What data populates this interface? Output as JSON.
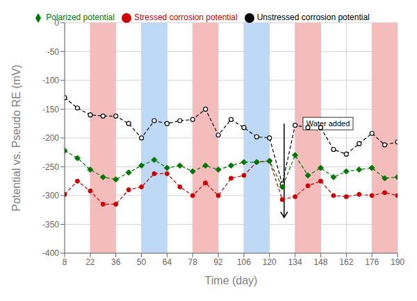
{
  "chart_data": {
    "type": "line",
    "xlabel": "Time (day)",
    "ylabel": "Potential vs. Pseudo RE (mV)",
    "x": [
      8,
      15,
      22,
      29,
      36,
      43,
      50,
      57,
      64,
      71,
      78,
      85,
      92,
      99,
      106,
      113,
      120,
      127,
      134,
      141,
      148,
      155,
      162,
      169,
      176,
      183,
      190
    ],
    "series": [
      {
        "name": "Stressed corrosion potential",
        "color": "#CC0000",
        "marker": "circle",
        "line_style": "dashed",
        "values": [
          -298,
          -275,
          -292,
          -315,
          -315,
          -290,
          -285,
          -262,
          -262,
          -285,
          -300,
          -278,
          -300,
          -270,
          -265,
          -242,
          -240,
          -307,
          -302,
          -283,
          -275,
          -300,
          -302,
          -298,
          -300,
          -295,
          -300
        ]
      },
      {
        "name": "Unstressed corrosion potential",
        "color": "#000000",
        "marker": "circle_open",
        "line_style": "dashed",
        "values": [
          -130,
          -148,
          -160,
          -162,
          -162,
          -175,
          -200,
          -170,
          -175,
          -170,
          -168,
          -150,
          -195,
          -168,
          -182,
          -198,
          -200,
          -280,
          -178,
          -182,
          -182,
          -220,
          -228,
          -210,
          -192,
          -212,
          -207
        ]
      },
      {
        "name": "Polarized potential",
        "color": "#007700",
        "marker": "diamond",
        "line_style": "dashed",
        "values": [
          -222,
          -235,
          -255,
          -268,
          -272,
          -260,
          -248,
          -238,
          -252,
          -248,
          -258,
          -248,
          -255,
          -248,
          -242,
          -242,
          -240,
          -285,
          -230,
          -265,
          -252,
          -268,
          -258,
          -255,
          -252,
          -270,
          -268
        ]
      }
    ],
    "bands": [
      {
        "x": [
          22,
          36
        ],
        "color": "#F5BCBC"
      },
      {
        "x": [
          78,
          92
        ],
        "color": "#F5BCBC"
      },
      {
        "x": [
          134,
          148
        ],
        "color": "#F5BCBC"
      },
      {
        "x": [
          176,
          190
        ],
        "color": "#F5BCBC"
      },
      {
        "x": [
          50,
          64
        ],
        "color": "#BDD9F5"
      },
      {
        "x": [
          106,
          120
        ],
        "color": "#BDD9F5"
      }
    ],
    "annotations": [
      {
        "text": "Water added",
        "x": 152,
        "y": -175,
        "arrow_from": [
          128,
          -175
        ],
        "arrow_to": [
          128,
          -338
        ]
      }
    ],
    "xlim": [
      8,
      190
    ],
    "ylim": [
      -400,
      0
    ],
    "xticks": [
      8,
      22,
      36,
      50,
      64,
      78,
      92,
      106,
      120,
      134,
      148,
      162,
      176,
      190
    ],
    "yticks": [
      0,
      -50,
      -100,
      -150,
      -200,
      -250,
      -300,
      -350,
      -400
    ],
    "grid": true,
    "legend": "top"
  }
}
